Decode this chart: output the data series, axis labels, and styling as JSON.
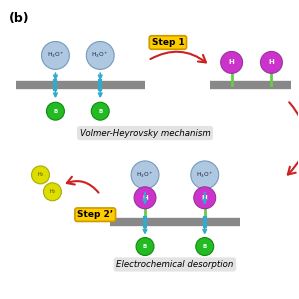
{
  "bg_color": "#ffffff",
  "title_label": "(b)",
  "step1_label": "Step 1",
  "step2_label": "Step 2’",
  "volmer_label": "Volmer-Heyrovsky mechanism",
  "electro_label": "Electrochemical desorption",
  "h2o_color": "#adc8e0",
  "h2o_edge": "#7799bb",
  "h_color": "#cc33cc",
  "h_edge": "#993399",
  "b_color": "#22bb22",
  "b_edge": "#118811",
  "bar_color": "#888888",
  "teal_arrow": "#33aacc",
  "red_arrow": "#cc2222",
  "step_box_color": "#ffcc00",
  "step_box_edge": "#cc9900",
  "label_bg": "#e0e0e0",
  "h2_color": "#dddd00",
  "h2_edge": "#aaaa00",
  "stem_color": "#66cc44",
  "text_dark": "#222244",
  "white": "#ffffff"
}
